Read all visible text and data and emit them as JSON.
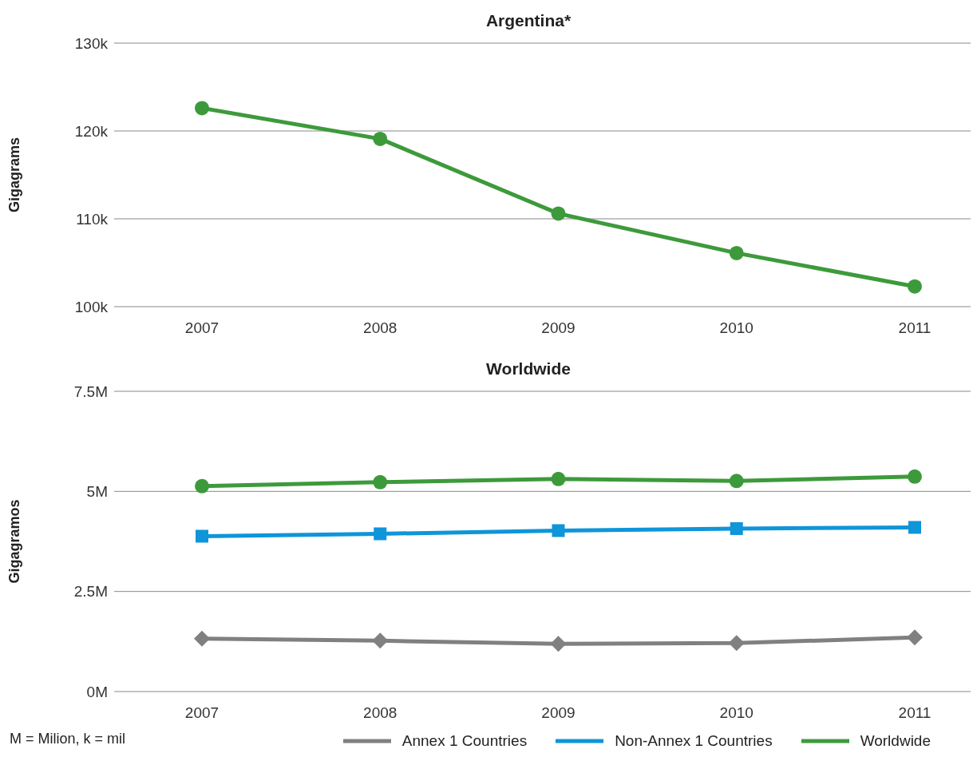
{
  "chart_data": [
    {
      "type": "line",
      "title": "Argentina*",
      "ylabel": "Gigagrams",
      "categories": [
        "2007",
        "2008",
        "2009",
        "2010",
        "2011"
      ],
      "ylim": [
        100000,
        130000
      ],
      "yticks": [
        {
          "value": 100000,
          "label": "100k"
        },
        {
          "value": 110000,
          "label": "110k"
        },
        {
          "value": 120000,
          "label": "120k"
        },
        {
          "value": 130000,
          "label": "130k"
        }
      ],
      "grid": "y",
      "legend": false,
      "marker": "circle",
      "series": [
        {
          "color": "#3d9a3b",
          "values": [
            122600,
            119100,
            110600,
            106100,
            102300
          ]
        }
      ]
    },
    {
      "type": "line",
      "title": "Worldwide",
      "ylabel": "Gigagramos",
      "categories": [
        "2007",
        "2008",
        "2009",
        "2010",
        "2011"
      ],
      "ylim": [
        0,
        7500000
      ],
      "yticks": [
        {
          "value": 0,
          "label": "0M"
        },
        {
          "value": 2500000,
          "label": "2.5M"
        },
        {
          "value": 5000000,
          "label": "5M"
        },
        {
          "value": 7500000,
          "label": "7.5M"
        }
      ],
      "grid": "y",
      "legend": "bottom",
      "annotations": [
        "M = Milion, k = mil"
      ],
      "series": [
        {
          "name": "Worldwide",
          "color": "#3d9a3b",
          "marker": "circle",
          "values": [
            5130000,
            5230000,
            5310000,
            5260000,
            5370000
          ]
        },
        {
          "name": "Annex 1 Countries",
          "color": "#808083",
          "marker": "diamond",
          "values": [
            1320000,
            1270000,
            1190000,
            1210000,
            1350000
          ]
        },
        {
          "name": "Non-Annex 1 Countries",
          "color": "#0f95d9",
          "marker": "square",
          "values": [
            3880000,
            3940000,
            4020000,
            4070000,
            4100000
          ]
        }
      ]
    }
  ]
}
